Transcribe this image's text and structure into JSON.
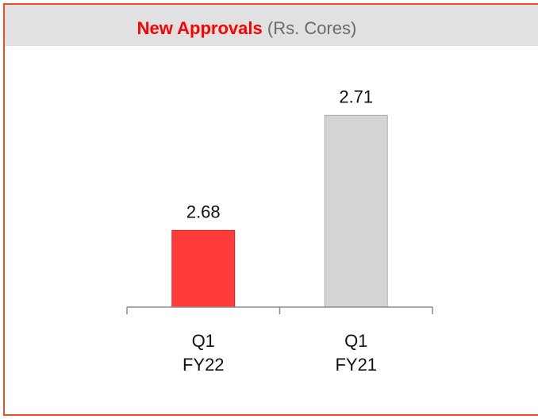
{
  "chart_data": {
    "type": "bar",
    "title": "New Approvals",
    "unit": "(Rs. Cores)",
    "categories": [
      "Q1 FY22",
      "Q1 FY21"
    ],
    "values": [
      2.68,
      2.71
    ],
    "colors": [
      "#ff3b3b",
      "#d4d4d4"
    ],
    "ylim": [
      2.66,
      2.72
    ]
  }
}
